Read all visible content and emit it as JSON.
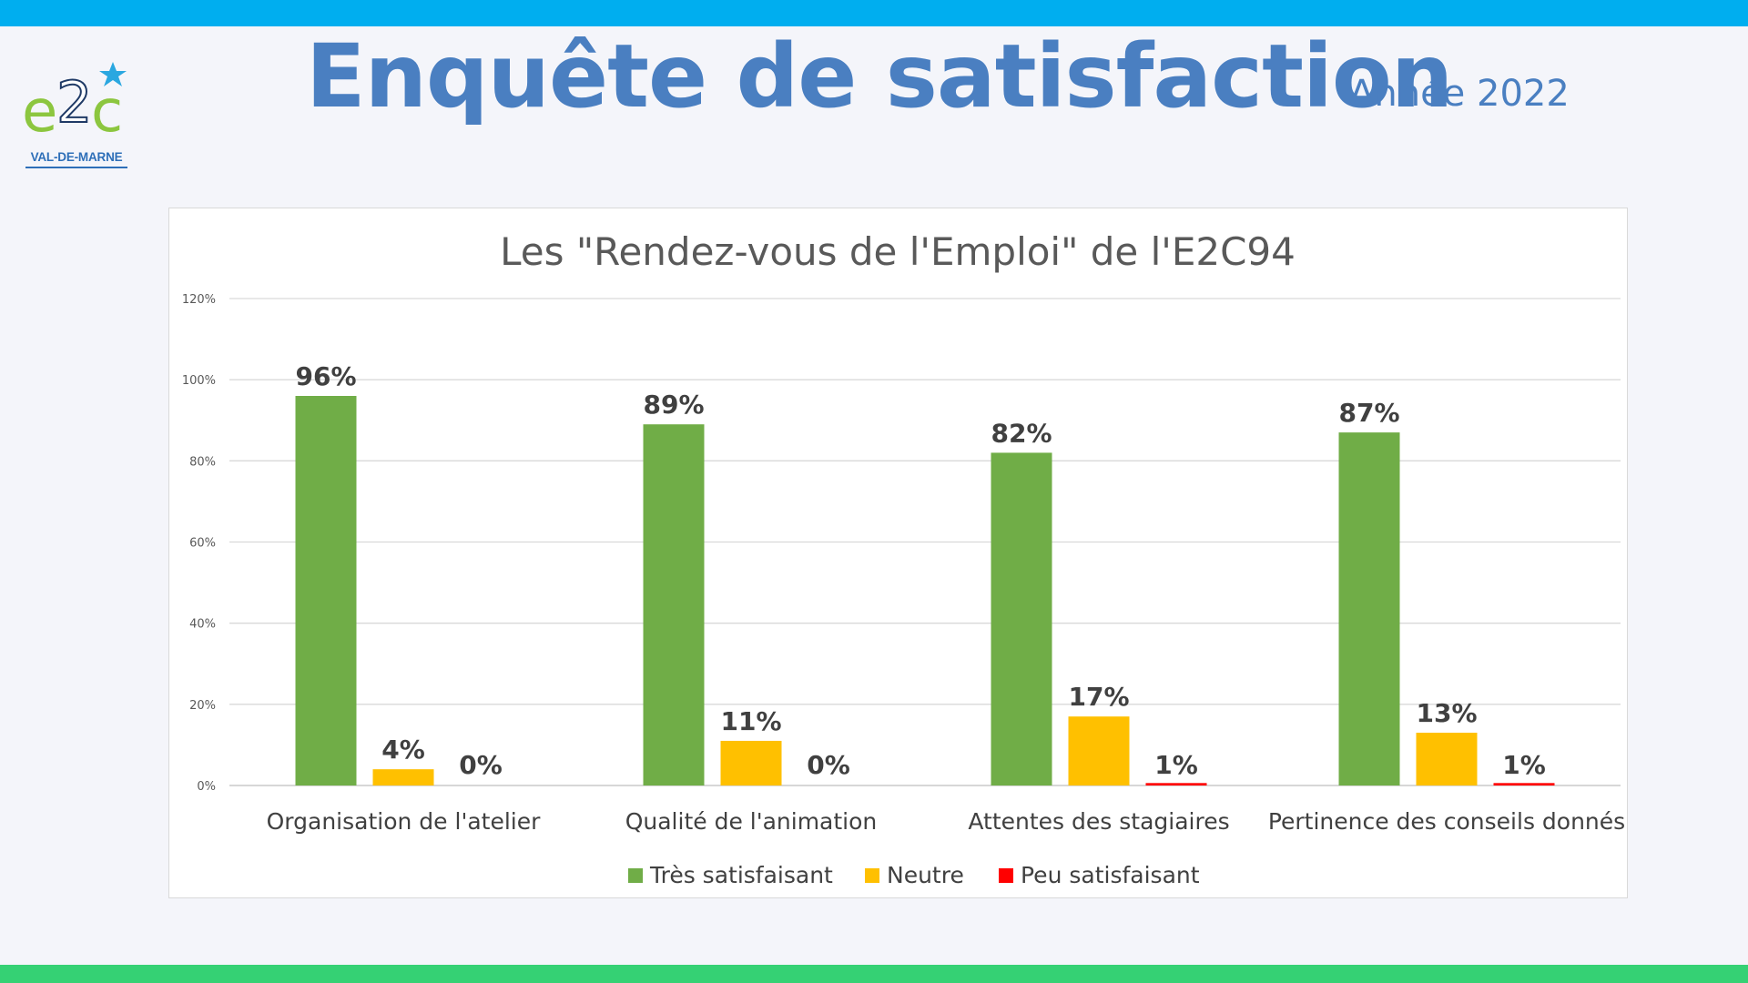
{
  "header": {
    "title": "Enquête de satisfaction",
    "subtitle": "Année 2022"
  },
  "logo": {
    "mark": "e2c",
    "text": "VAL-DE-MARNE"
  },
  "colors": {
    "top_band": "#00aeef",
    "bottom_band": "#35d174",
    "title": "#4a7fc1"
  },
  "chart_data": {
    "type": "bar",
    "title": "Les \"Rendez-vous de l'Emploi\" de l'E2C94",
    "categories": [
      "Organisation de l'atelier",
      "Qualité de l'animation",
      "Attentes des stagiaires",
      "Pertinence des conseils donnés"
    ],
    "series": [
      {
        "name": "Très satisfaisant",
        "color": "#70ad47",
        "values": [
          96,
          89,
          82,
          87
        ],
        "labels": [
          "96%",
          "89%",
          "82%",
          "87%"
        ]
      },
      {
        "name": "Neutre",
        "color": "#ffc000",
        "values": [
          4,
          11,
          17,
          13
        ],
        "labels": [
          "4%",
          "11%",
          "17%",
          "13%"
        ]
      },
      {
        "name": "Peu satisfaisant",
        "color": "#ff0000",
        "values": [
          0,
          0,
          0.6,
          0.6
        ],
        "labels": [
          "0%",
          "0%",
          "1%",
          "1%"
        ]
      }
    ],
    "ylim": [
      0,
      120
    ],
    "yticks": [
      0,
      20,
      40,
      60,
      80,
      100,
      120
    ],
    "ytick_labels": [
      "0%",
      "20%",
      "40%",
      "60%",
      "80%",
      "100%",
      "120%"
    ],
    "xlabel": "",
    "ylabel": "",
    "grid": true,
    "legend": "bottom"
  }
}
